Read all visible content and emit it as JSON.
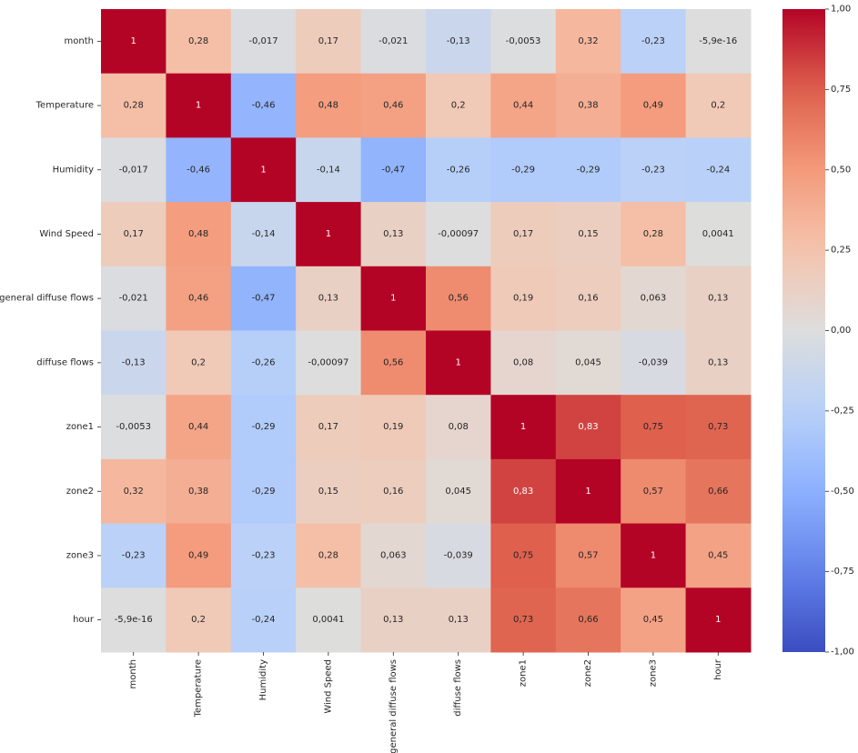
{
  "chart_data": {
    "type": "heatmap",
    "title": "",
    "xlabel": "",
    "ylabel": "",
    "rows": [
      "month",
      "Temperature",
      "Humidity",
      "Wind Speed",
      "general diffuse flows",
      "diffuse flows",
      "zone1",
      "zone2",
      "zone3",
      "hour"
    ],
    "columns": [
      "month",
      "Temperature",
      "Humidity",
      "Wind Speed",
      "general diffuse flows",
      "diffuse flows",
      "zone1",
      "zone2",
      "zone3",
      "hour"
    ],
    "values": [
      [
        1,
        0.28,
        -0.017,
        0.17,
        -0.021,
        -0.13,
        -0.0053,
        0.32,
        -0.23,
        -5.9e-16
      ],
      [
        0.28,
        1,
        -0.46,
        0.48,
        0.46,
        0.2,
        0.44,
        0.38,
        0.49,
        0.2
      ],
      [
        -0.017,
        -0.46,
        1,
        -0.14,
        -0.47,
        -0.26,
        -0.29,
        -0.29,
        -0.23,
        -0.24
      ],
      [
        0.17,
        0.48,
        -0.14,
        1,
        0.13,
        -0.00097,
        0.17,
        0.15,
        0.28,
        0.0041
      ],
      [
        -0.021,
        0.46,
        -0.47,
        0.13,
        1,
        0.56,
        0.19,
        0.16,
        0.063,
        0.13
      ],
      [
        -0.13,
        0.2,
        -0.26,
        -0.00097,
        0.56,
        1,
        0.08,
        0.045,
        -0.039,
        0.13
      ],
      [
        -0.0053,
        0.44,
        -0.29,
        0.17,
        0.19,
        0.08,
        1,
        0.83,
        0.75,
        0.73
      ],
      [
        0.32,
        0.38,
        -0.29,
        0.15,
        0.16,
        0.045,
        0.83,
        1,
        0.57,
        0.66
      ],
      [
        -0.23,
        0.49,
        -0.23,
        0.28,
        0.063,
        -0.039,
        0.75,
        0.57,
        1,
        0.45
      ],
      [
        -5.9e-16,
        0.2,
        -0.24,
        0.0041,
        0.13,
        0.13,
        0.73,
        0.66,
        0.45,
        1
      ]
    ],
    "annotations": [
      [
        "1",
        "0,28",
        "-0,017",
        "0,17",
        "-0,021",
        "-0,13",
        "-0,0053",
        "0,32",
        "-0,23",
        "-5,9e-16"
      ],
      [
        "0,28",
        "1",
        "-0,46",
        "0,48",
        "0,46",
        "0,2",
        "0,44",
        "0,38",
        "0,49",
        "0,2"
      ],
      [
        "-0,017",
        "-0,46",
        "1",
        "-0,14",
        "-0,47",
        "-0,26",
        "-0,29",
        "-0,29",
        "-0,23",
        "-0,24"
      ],
      [
        "0,17",
        "0,48",
        "-0,14",
        "1",
        "0,13",
        "-0,00097",
        "0,17",
        "0,15",
        "0,28",
        "0,0041"
      ],
      [
        "-0,021",
        "0,46",
        "-0,47",
        "0,13",
        "1",
        "0,56",
        "0,19",
        "0,16",
        "0,063",
        "0,13"
      ],
      [
        "-0,13",
        "0,2",
        "-0,26",
        "-0,00097",
        "0,56",
        "1",
        "0,08",
        "0,045",
        "-0,039",
        "0,13"
      ],
      [
        "-0,0053",
        "0,44",
        "-0,29",
        "0,17",
        "0,19",
        "0,08",
        "1",
        "0,83",
        "0,75",
        "0,73"
      ],
      [
        "0,32",
        "0,38",
        "-0,29",
        "0,15",
        "0,16",
        "0,045",
        "0,83",
        "1",
        "0,57",
        "0,66"
      ],
      [
        "-0,23",
        "0,49",
        "-0,23",
        "0,28",
        "0,063",
        "-0,039",
        "0,75",
        "0,57",
        "1",
        "0,45"
      ],
      [
        "-5,9e-16",
        "0,2",
        "-0,24",
        "0,0041",
        "0,13",
        "0,13",
        "0,73",
        "0,66",
        "0,45",
        "1"
      ]
    ],
    "colormap": "coolwarm",
    "vmin": -1,
    "vmax": 1,
    "colorbar": {
      "ticks": [
        1,
        0.75,
        0.5,
        0.25,
        0,
        -0.25,
        -0.5,
        -0.75,
        -1
      ],
      "tick_labels": [
        "1,00",
        "0,75",
        "0,50",
        "0,25",
        "0,00",
        "-0,25",
        "-0,50",
        "-0,75",
        "-1,00"
      ],
      "placement": "right"
    },
    "grid": false,
    "legend": "none"
  }
}
